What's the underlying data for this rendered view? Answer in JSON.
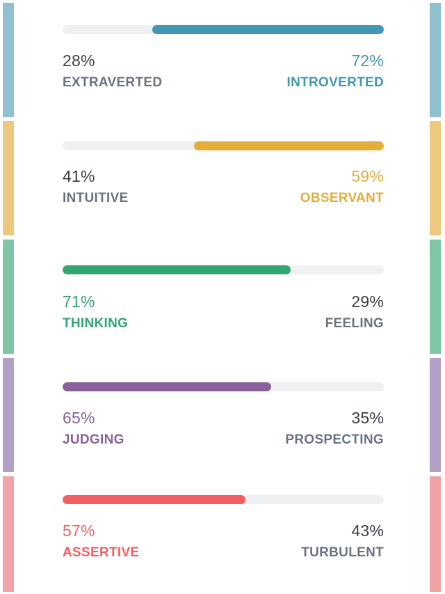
{
  "colors": {
    "track": "#eef0f2",
    "neutral_text": "#3a3f49",
    "neutral_label": "#6b7280"
  },
  "traits": [
    {
      "left_percent": "28%",
      "left_label": "EXTRAVERTED",
      "right_percent": "72%",
      "right_label": "INTROVERTED",
      "dominant": "right",
      "dominant_fraction": 0.72,
      "accent": "#4298b4",
      "stripe": "#8fc1d1"
    },
    {
      "left_percent": "41%",
      "left_label": "INTUITIVE",
      "right_percent": "59%",
      "right_label": "OBSERVANT",
      "dominant": "right",
      "dominant_fraction": 0.59,
      "accent": "#e4ae3a",
      "stripe": "#ecc97f"
    },
    {
      "left_percent": "71%",
      "left_label": "THINKING",
      "right_percent": "29%",
      "right_label": "FEELING",
      "dominant": "left",
      "dominant_fraction": 0.71,
      "accent": "#33a474",
      "stripe": "#7fc6a5"
    },
    {
      "left_percent": "65%",
      "left_label": "JUDGING",
      "right_percent": "35%",
      "right_label": "PROSPECTING",
      "dominant": "left",
      "dominant_fraction": 0.65,
      "accent": "#88619a",
      "stripe": "#b3a0c6"
    },
    {
      "left_percent": "57%",
      "left_label": "ASSERTIVE",
      "right_percent": "43%",
      "right_label": "TURBULENT",
      "dominant": "left",
      "dominant_fraction": 0.57,
      "accent": "#f25e62",
      "stripe": "#f0a2a4"
    }
  ]
}
